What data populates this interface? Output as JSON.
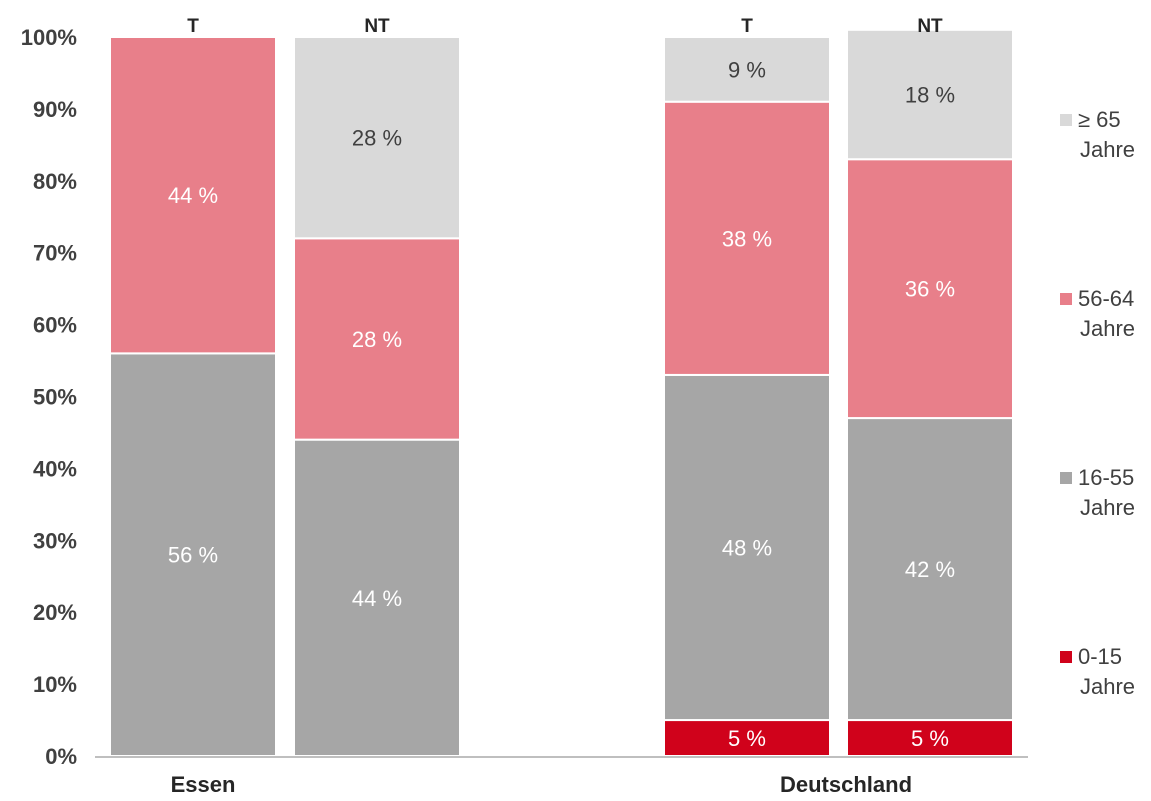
{
  "chart_data": {
    "type": "bar",
    "stacked": true,
    "groups": [
      "Essen",
      "Deutschland"
    ],
    "categories": [
      "T",
      "NT",
      "T",
      "NT"
    ],
    "category_group": [
      0,
      0,
      1,
      1
    ],
    "series": [
      {
        "name": "0-15 Jahre",
        "color": "#d0021b",
        "values": [
          0,
          0,
          5,
          5
        ],
        "labels": [
          "",
          "",
          "5 %",
          "5 %"
        ]
      },
      {
        "name": "16-55 Jahre",
        "color": "#a6a6a6",
        "values": [
          56,
          44,
          48,
          42
        ],
        "labels": [
          "56 %",
          "44 %",
          "48 %",
          "42 %"
        ]
      },
      {
        "name": "56-64 Jahre",
        "color": "#e87f8a",
        "values": [
          44,
          28,
          38,
          36
        ],
        "labels": [
          "44 %",
          "28 %",
          "38 %",
          "36 %"
        ]
      },
      {
        "name": "≥ 65 Jahre",
        "color": "#d9d9d9",
        "values": [
          0,
          28,
          9,
          18
        ],
        "labels": [
          "",
          "28 %",
          "9 %",
          "18 %"
        ]
      }
    ],
    "ylim": [
      0,
      100
    ],
    "yticks": [
      "0%",
      "10%",
      "20%",
      "30%",
      "40%",
      "50%",
      "60%",
      "70%",
      "80%",
      "90%",
      "100%"
    ],
    "legend_position": "right",
    "legend_order": [
      3,
      2,
      1,
      0
    ],
    "grid": false
  },
  "legend": {
    "items": [
      {
        "line1": "≥ 65",
        "line2": "Jahre",
        "color": "#d9d9d9"
      },
      {
        "line1": "56-64",
        "line2": "Jahre",
        "color": "#e87f8a"
      },
      {
        "line1": "16-55",
        "line2": "Jahre",
        "color": "#a6a6a6"
      },
      {
        "line1": "0-15",
        "line2": "Jahre",
        "color": "#d0021b"
      }
    ]
  }
}
